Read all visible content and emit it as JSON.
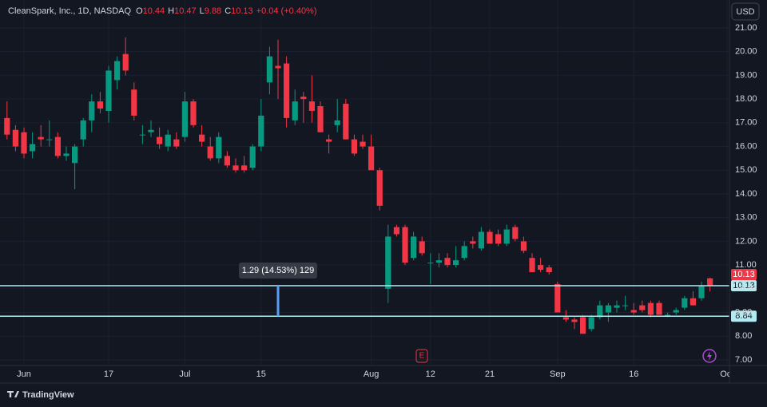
{
  "header": {
    "symbol": "CleanSpark, Inc., 1D, NASDAQ",
    "open_label": "O",
    "open": 10.44,
    "high_label": "H",
    "high": 10.47,
    "low_label": "L",
    "low": 9.88,
    "close_label": "C",
    "close": 10.13,
    "change": "+0.04 (+0.40%)",
    "currency": "USD"
  },
  "brand": "TradingView",
  "chart_data": {
    "type": "candlestick",
    "up_color": "#089981",
    "down_color": "#f23645",
    "open": [
      17.2,
      16.7,
      16.6,
      15.8,
      16.4,
      16.3,
      16.4,
      15.6,
      15.3,
      16.3,
      17.1,
      17.9,
      17.5,
      18.8,
      19.9,
      18.4,
      16.5,
      16.6,
      16.4,
      16.0,
      16.3,
      16.4,
      17.9,
      16.5,
      16.0,
      15.5,
      15.6,
      15.2,
      15.2,
      15.1,
      16.0,
      18.7,
      19.4,
      19.5,
      17.1,
      18.1,
      17.9,
      17.7,
      16.3,
      16.9,
      17.8,
      16.3,
      16.2,
      16.0,
      15.0,
      10.0,
      12.6,
      12.6,
      11.3,
      12.0,
      11.1,
      11.1,
      11.3,
      11.0,
      11.3,
      12.0,
      11.7,
      12.4,
      12.3,
      11.9,
      12.6,
      12.0,
      11.3,
      11.0,
      10.9,
      10.2,
      8.8,
      8.7,
      8.8,
      8.3,
      8.8,
      9.0,
      9.2,
      9.3,
      9.1,
      9.3,
      9.4,
      9.4,
      8.9,
      9.0,
      9.2,
      9.6,
      9.6,
      10.44
    ],
    "high": [
      17.9,
      16.9,
      16.8,
      16.6,
      16.9,
      17.1,
      16.6,
      16.0,
      16.1,
      17.2,
      18.2,
      18.3,
      19.4,
      19.8,
      20.6,
      18.7,
      16.9,
      17.1,
      16.8,
      16.7,
      16.6,
      18.3,
      18.0,
      16.9,
      16.4,
      16.6,
      15.8,
      15.5,
      15.6,
      16.1,
      18.0,
      20.2,
      20.5,
      19.8,
      18.4,
      18.3,
      19.0,
      17.9,
      16.5,
      18.0,
      18.0,
      16.5,
      16.5,
      16.5,
      15.1,
      12.7,
      12.7,
      12.7,
      12.4,
      12.2,
      11.5,
      11.5,
      11.5,
      11.8,
      12.0,
      12.2,
      12.6,
      12.5,
      12.5,
      12.7,
      12.7,
      12.2,
      11.5,
      11.3,
      11.0,
      10.3,
      9.1,
      8.8,
      8.9,
      8.9,
      9.5,
      9.4,
      9.5,
      9.7,
      9.4,
      9.5,
      9.5,
      9.5,
      9.0,
      9.2,
      9.7,
      9.9,
      10.3,
      10.47
    ],
    "low": [
      16.3,
      15.8,
      15.5,
      15.5,
      16.0,
      16.0,
      15.5,
      15.4,
      14.2,
      16.0,
      16.6,
      17.4,
      17.0,
      18.4,
      19.0,
      17.1,
      16.1,
      16.4,
      15.9,
      15.8,
      15.9,
      16.2,
      16.8,
      16.0,
      15.4,
      15.3,
      15.1,
      14.9,
      14.9,
      15.0,
      15.8,
      18.2,
      18.0,
      16.8,
      16.9,
      17.0,
      17.0,
      16.6,
      15.7,
      16.6,
      16.3,
      15.6,
      15.9,
      15.0,
      13.3,
      9.4,
      12.2,
      11.0,
      11.2,
      11.4,
      10.2,
      10.9,
      10.9,
      10.9,
      11.2,
      11.7,
      11.6,
      11.9,
      11.8,
      11.8,
      12.0,
      11.5,
      10.7,
      10.7,
      10.6,
      9.0,
      8.6,
      8.3,
      8.1,
      8.2,
      8.7,
      8.6,
      9.0,
      9.1,
      8.9,
      9.0,
      8.8,
      8.9,
      8.8,
      8.9,
      9.1,
      9.3,
      9.5,
      9.88
    ],
    "close": [
      16.5,
      16.0,
      15.7,
      16.1,
      16.3,
      16.3,
      15.6,
      15.7,
      16.0,
      17.1,
      17.9,
      17.6,
      19.2,
      19.6,
      19.2,
      17.3,
      16.5,
      16.7,
      16.1,
      16.5,
      16.0,
      17.9,
      16.9,
      16.2,
      15.5,
      16.4,
      15.2,
      15.0,
      15.0,
      16.0,
      17.3,
      19.8,
      19.3,
      17.2,
      17.9,
      18.0,
      17.5,
      16.6,
      16.2,
      17.1,
      16.3,
      15.7,
      16.0,
      15.0,
      13.5,
      12.2,
      12.3,
      11.1,
      12.2,
      11.5,
      11.1,
      11.2,
      11.0,
      11.2,
      11.8,
      11.9,
      12.4,
      11.9,
      11.9,
      12.5,
      12.1,
      11.6,
      10.7,
      10.8,
      10.7,
      9.0,
      8.7,
      8.6,
      8.1,
      8.8,
      9.3,
      9.3,
      9.3,
      9.3,
      9.0,
      9.1,
      8.9,
      8.9,
      8.9,
      9.1,
      9.6,
      9.3,
      10.1,
      10.13
    ],
    "xlim": [
      -0.83,
      85.3
    ],
    "xticks": [
      {
        "value": 2,
        "label": "Jun"
      },
      {
        "value": 12,
        "label": "17"
      },
      {
        "value": 21,
        "label": "Jul"
      },
      {
        "value": 30,
        "label": "15"
      },
      {
        "value": 43,
        "label": "Aug"
      },
      {
        "value": 50,
        "label": "12"
      },
      {
        "value": 57,
        "label": "21"
      },
      {
        "value": 65,
        "label": "Sep"
      },
      {
        "value": 74,
        "label": "16"
      },
      {
        "value": 85,
        "label": "Oct"
      }
    ],
    "ylim": [
      6.76,
      21.5
    ],
    "yticks": [
      {
        "value": 7,
        "label": "7.00"
      },
      {
        "value": 8,
        "label": "8.00"
      },
      {
        "value": 9,
        "label": "9.00"
      },
      {
        "value": 10,
        "label": "10.00"
      },
      {
        "value": 11,
        "label": "11.00"
      },
      {
        "value": 12,
        "label": "12.00"
      },
      {
        "value": 13,
        "label": "13.00"
      },
      {
        "value": 14,
        "label": "14.00"
      },
      {
        "value": 15,
        "label": "15.00"
      },
      {
        "value": 16,
        "label": "16.00"
      },
      {
        "value": 17,
        "label": "17.00"
      },
      {
        "value": 18,
        "label": "18.00"
      },
      {
        "value": 19,
        "label": "19.00"
      },
      {
        "value": 20,
        "label": "20.00"
      },
      {
        "value": 21,
        "label": "21.00"
      }
    ],
    "grid": true,
    "last_price": 10.13,
    "hlines": [
      10.13,
      8.84
    ],
    "measure_label": "1.29 (14.53%) 129",
    "earnings_marker": "E"
  }
}
